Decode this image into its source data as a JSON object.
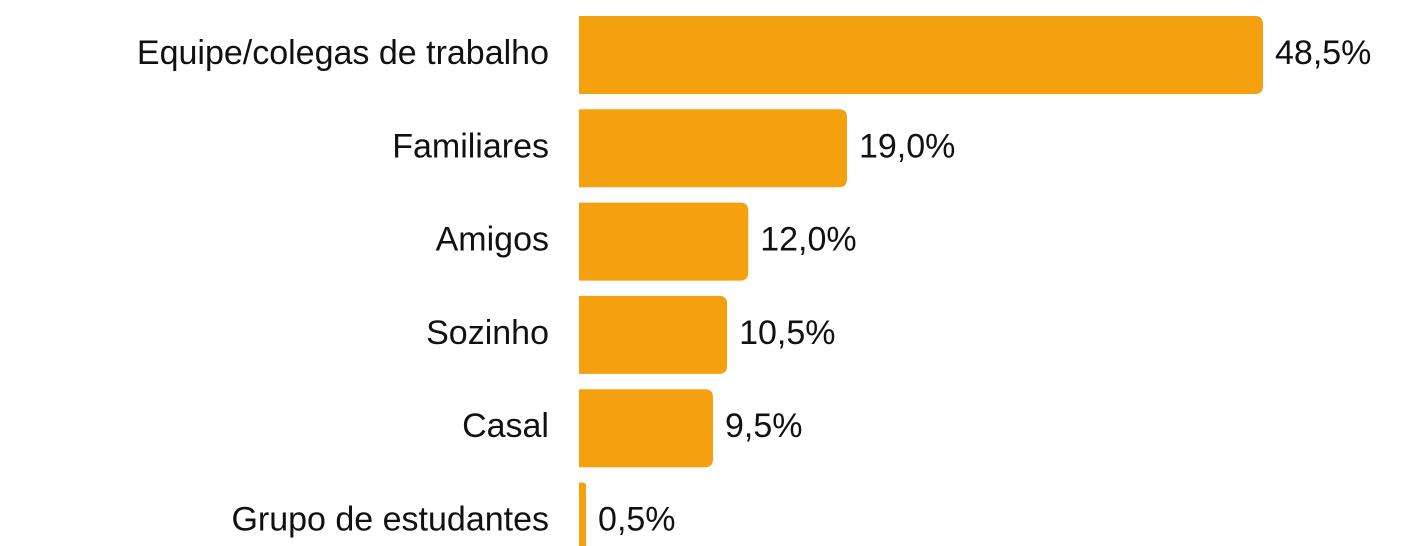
{
  "chart_data": {
    "type": "bar",
    "orientation": "horizontal",
    "categories": [
      "Equipe/colegas de trabalho",
      "Familiares",
      "Amigos",
      "Sozinho",
      "Casal",
      "Grupo de estudantes"
    ],
    "values": [
      48.5,
      19.0,
      12.0,
      10.5,
      9.5,
      0.5
    ],
    "value_labels": [
      "48,5%",
      "19,0%",
      "12,0%",
      "10,5%",
      "9,5%",
      "0,5%"
    ],
    "color": "#f5a00f"
  }
}
